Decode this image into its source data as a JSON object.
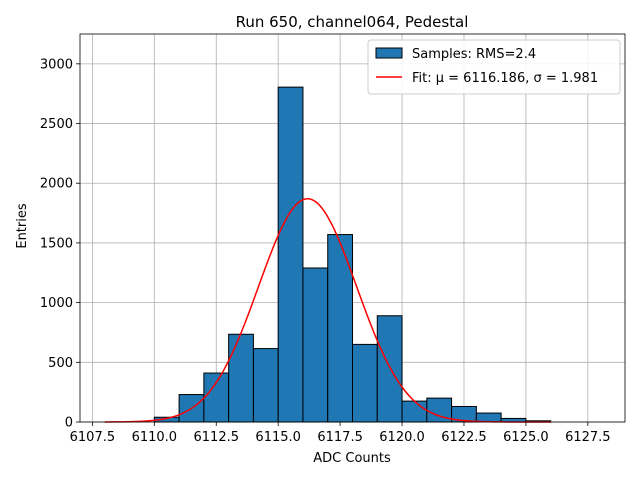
{
  "chart_data": {
    "type": "bar",
    "title": "Run 650, channel064, Pedestal",
    "xlabel": "ADC Counts",
    "ylabel": "Entries",
    "xlim": [
      6107.0,
      6129.0
    ],
    "ylim": [
      0,
      3250
    ],
    "xticks": [
      6107.5,
      6110.0,
      6112.5,
      6115.0,
      6117.5,
      6120.0,
      6122.5,
      6125.0,
      6127.5
    ],
    "xtick_labels": [
      "6107.5",
      "6110.0",
      "6112.5",
      "6115.0",
      "6117.5",
      "6120.0",
      "6122.5",
      "6125.0",
      "6127.5"
    ],
    "yticks": [
      0,
      500,
      1000,
      1500,
      2000,
      2500,
      3000
    ],
    "ytick_labels": [
      "0",
      "500",
      "1000",
      "1500",
      "2000",
      "2500",
      "3000"
    ],
    "grid": true,
    "bin_width": 1.0,
    "bins": {
      "edges_start": [
        6110,
        6111,
        6112,
        6113,
        6114,
        6115,
        6116,
        6117,
        6118,
        6119,
        6120,
        6121,
        6122,
        6123,
        6124,
        6125
      ],
      "counts": [
        40,
        230,
        410,
        735,
        615,
        2805,
        1290,
        1570,
        650,
        890,
        175,
        200,
        130,
        75,
        30,
        10
      ]
    },
    "fit": {
      "mu": 6116.186,
      "sigma": 1.981,
      "amplitude": 1870,
      "x_range": [
        6108.0,
        6126.0
      ],
      "color": "#ff0000"
    },
    "bar_color": "#1f77b4",
    "bar_edge_color": "#000000",
    "legend": {
      "position": "upper right",
      "samples_label": "Samples: RMS=2.4",
      "fit_label": "Fit: μ = 6116.186, σ = 1.981"
    }
  }
}
